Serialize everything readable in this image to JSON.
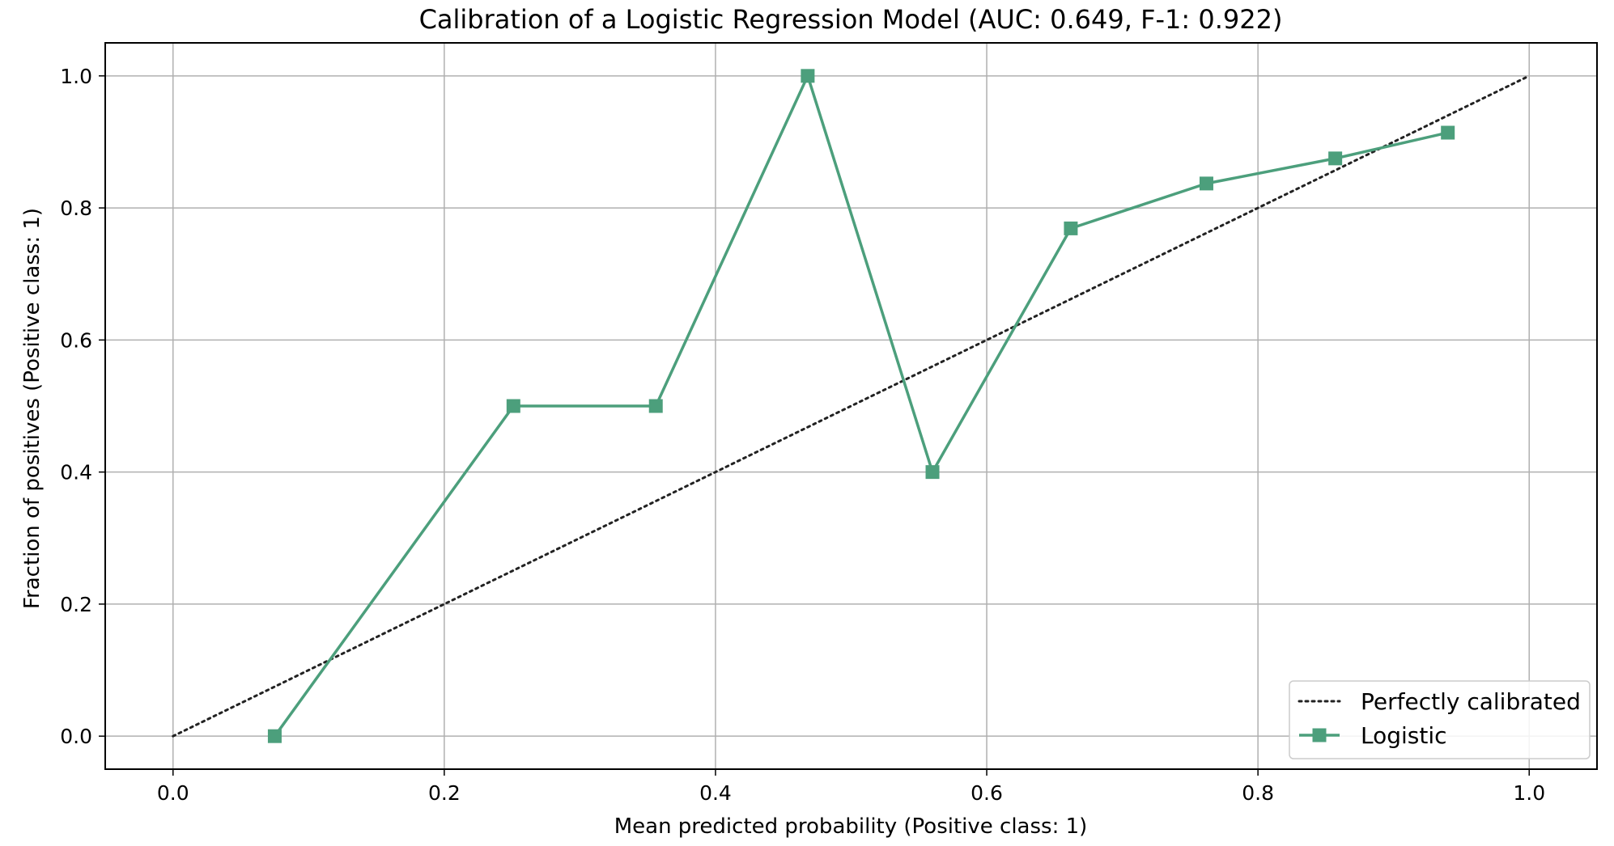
{
  "colors": {
    "series": "#4c9f7c",
    "diagonal": "#222222",
    "grid": "#b0b0b0",
    "axes": "#000000",
    "legend_border": "#cccccc"
  },
  "chart_data": {
    "type": "line",
    "title": "Calibration of a Logistic Regression Model (AUC: 0.649, F-1: 0.922)",
    "xlabel": "Mean predicted probability (Positive class: 1)",
    "ylabel": "Fraction of positives (Positive class: 1)",
    "xlim": [
      -0.05,
      1.05
    ],
    "ylim": [
      -0.05,
      1.05
    ],
    "xticks": [
      0.0,
      0.2,
      0.4,
      0.6,
      0.8,
      1.0
    ],
    "xtick_labels": [
      "0.0",
      "0.2",
      "0.4",
      "0.6",
      "0.8",
      "1.0"
    ],
    "yticks": [
      0.0,
      0.2,
      0.4,
      0.6,
      0.8,
      1.0
    ],
    "ytick_labels": [
      "0.0",
      "0.2",
      "0.4",
      "0.6",
      "0.8",
      "1.0"
    ],
    "grid": true,
    "legend_position": "bottom-right",
    "series": [
      {
        "name": "Perfectly calibrated",
        "style": "dotted",
        "marker": "none",
        "x": [
          0.0,
          1.0
        ],
        "y": [
          0.0,
          1.0
        ]
      },
      {
        "name": "Logistic",
        "style": "solid",
        "marker": "square",
        "x": [
          0.075,
          0.251,
          0.356,
          0.468,
          0.56,
          0.662,
          0.762,
          0.857,
          0.94
        ],
        "y": [
          0.0,
          0.5,
          0.5,
          1.0,
          0.4,
          0.769,
          0.837,
          0.875,
          0.914
        ]
      }
    ]
  }
}
